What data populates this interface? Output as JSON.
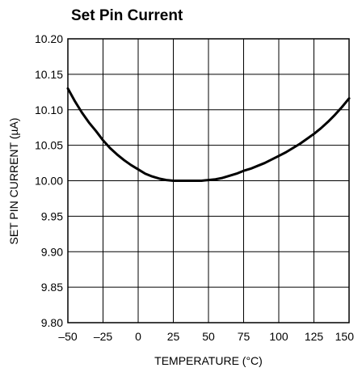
{
  "chart_data": {
    "type": "line",
    "title": "Set Pin Current",
    "xlabel": "TEMPERATURE (°C)",
    "ylabel": "SET PIN CURRENT (µA)",
    "xlim": [
      -50,
      150
    ],
    "ylim": [
      9.8,
      10.2
    ],
    "x_ticks": [
      -50,
      -25,
      0,
      25,
      50,
      75,
      100,
      125,
      150
    ],
    "x_tick_labels": [
      "–50",
      "–25",
      "0",
      "25",
      "50",
      "75",
      "100",
      "125",
      "150"
    ],
    "y_ticks": [
      9.8,
      9.85,
      9.9,
      9.95,
      10.0,
      10.05,
      10.1,
      10.15,
      10.2
    ],
    "y_tick_labels": [
      "9.80",
      "9.85",
      "9.90",
      "9.95",
      "10.00",
      "10.05",
      "10.10",
      "10.15",
      "10.20"
    ],
    "grid": true,
    "series": [
      {
        "x": [
          -50,
          -45,
          -40,
          -35,
          -30,
          -25,
          -20,
          -15,
          -10,
          -5,
          0,
          5,
          10,
          15,
          20,
          25,
          30,
          35,
          40,
          45,
          50,
          55,
          60,
          65,
          70,
          75,
          80,
          85,
          90,
          95,
          100,
          105,
          110,
          115,
          120,
          125,
          130,
          135,
          140,
          145,
          150
        ],
        "y": [
          10.13,
          10.112,
          10.096,
          10.082,
          10.07,
          10.057,
          10.046,
          10.037,
          10.029,
          10.022,
          10.016,
          10.01,
          10.006,
          10.003,
          10.001,
          10.0,
          10.0,
          10.0,
          10.0,
          10.0,
          10.001,
          10.002,
          10.004,
          10.007,
          10.01,
          10.014,
          10.017,
          10.021,
          10.025,
          10.03,
          10.035,
          10.04,
          10.046,
          10.052,
          10.059,
          10.066,
          10.074,
          10.083,
          10.093,
          10.104,
          10.116
        ]
      }
    ]
  }
}
